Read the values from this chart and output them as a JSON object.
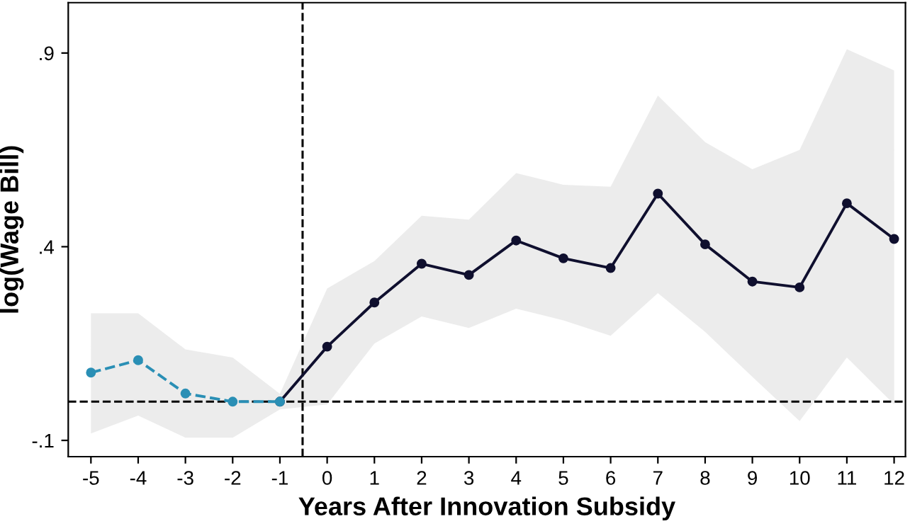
{
  "chart_data": {
    "type": "line",
    "xlabel": "Years After Innovation Subsidy",
    "ylabel": "log(Wage Bill)",
    "xlim": [
      -5.48,
      12.24
    ],
    "ylim": [
      -0.142,
      1.03
    ],
    "xticks": [
      -5,
      -4,
      -3,
      -2,
      -1,
      0,
      1,
      2,
      3,
      4,
      5,
      6,
      7,
      8,
      9,
      10,
      11,
      12
    ],
    "yticks": [
      {
        "value": -0.1,
        "label": "-.1"
      },
      {
        "value": 0.4,
        "label": ".4"
      },
      {
        "value": 0.9,
        "label": ".9"
      }
    ],
    "grid": false,
    "legend": false,
    "marker": "circle",
    "ref_lines": [
      {
        "axis": "x",
        "value": -0.52,
        "color": "#000000",
        "line_style": "dashed"
      },
      {
        "axis": "y",
        "value": 0,
        "color": "#000000",
        "line_style": "dashed"
      }
    ],
    "series": [
      {
        "color": "#0f0f2e",
        "line_style": "solid",
        "x": [
          -1,
          0,
          1,
          2,
          3,
          4,
          5,
          6,
          7,
          8,
          9,
          10,
          11,
          12
        ],
        "values": [
          0,
          0.142,
          0.256,
          0.356,
          0.327,
          0.416,
          0.37,
          0.345,
          0.537,
          0.406,
          0.31,
          0.295,
          0.512,
          0.42
        ],
        "lower": [
          -0.02,
          -0.007,
          0.15,
          0.22,
          0.19,
          0.24,
          0.21,
          0.17,
          0.28,
          0.18,
          0.064,
          -0.05,
          0.114,
          -0.007
        ],
        "upper": [
          0.02,
          0.292,
          0.363,
          0.48,
          0.47,
          0.59,
          0.56,
          0.555,
          0.79,
          0.67,
          0.6,
          0.65,
          0.91,
          0.855
        ]
      },
      {
        "color": "#2a8fb5",
        "line_style": "dashed",
        "x": [
          -5,
          -4,
          -3,
          -2,
          -1
        ],
        "values": [
          0.075,
          0.107,
          0.021,
          0,
          0
        ],
        "lower": [
          -0.082,
          -0.036,
          -0.093,
          -0.093,
          -0.02
        ],
        "upper": [
          0.228,
          0.228,
          0.135,
          0.114,
          0.02
        ]
      }
    ]
  }
}
